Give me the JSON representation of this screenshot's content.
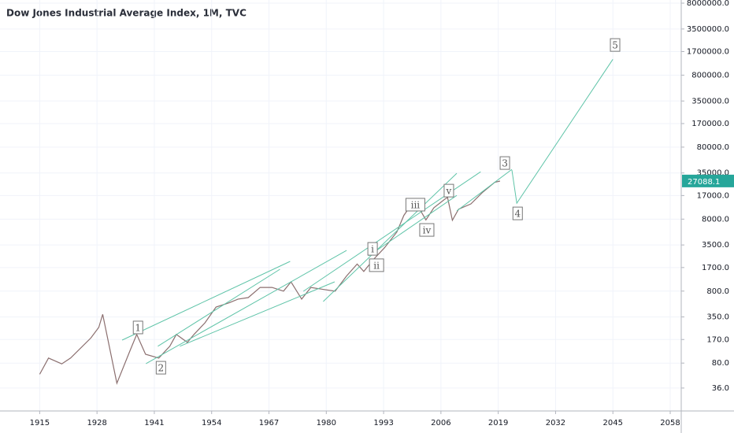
{
  "chart_data": {
    "type": "line",
    "title": "Dow Jones Industrial Average Index, 1M, TVC",
    "log_scale": true,
    "grid": true,
    "xlim": [
      1906,
      2060.5
    ],
    "xticks": [
      1915,
      1928,
      1941,
      1954,
      1967,
      1980,
      1993,
      2006,
      2019,
      2032,
      2045,
      2058
    ],
    "ylim": [
      17.3,
      8850000
    ],
    "yticks": [
      {
        "value": 36,
        "label": "36.0"
      },
      {
        "value": 80,
        "label": "80.0"
      },
      {
        "value": 170,
        "label": "170.0"
      },
      {
        "value": 350,
        "label": "350.0"
      },
      {
        "value": 800,
        "label": "800.0"
      },
      {
        "value": 1700,
        "label": "1700.0"
      },
      {
        "value": 3500,
        "label": "3500.0"
      },
      {
        "value": 8000,
        "label": "8000.0"
      },
      {
        "value": 17000,
        "label": "17000.0"
      },
      {
        "value": 35000,
        "label": "35000.0"
      },
      {
        "value": 80000,
        "label": "80000.0"
      },
      {
        "value": 170000,
        "label": "170000.0"
      },
      {
        "value": 350000,
        "label": "350000.0"
      },
      {
        "value": 800000,
        "label": "800000.0"
      },
      {
        "value": 1700000,
        "label": "1700000.0"
      },
      {
        "value": 3500000,
        "label": "3500000.0"
      },
      {
        "value": 8000000,
        "label": "8000000.0"
      }
    ],
    "series": [
      {
        "color": "#8b6f6f",
        "x": [
          1915,
          1917,
          1920,
          1922,
          1926.6,
          1928.4,
          1929.3,
          1932.5,
          1935.5,
          1937,
          1939,
          1942,
          1944.5,
          1946,
          1948.5,
          1950,
          1952.5,
          1955,
          1958,
          1960,
          1962.3,
          1965,
          1967.7,
          1970.3,
          1972,
          1974.4,
          1976.5,
          1979,
          1982,
          1984.6,
          1987,
          1988.5,
          1990.7,
          1993.2,
          1996,
          1997.6,
          1999.4,
          2001,
          2002.6,
          2004.4,
          2006.8,
          2007.5,
          2008.6,
          2010,
          2012.8,
          2015.5,
          2018.2,
          2019.4
        ],
        "values": [
          56,
          94,
          78,
          94,
          178,
          250,
          380,
          42,
          120,
          200,
          106,
          94,
          137,
          200,
          155,
          200,
          290,
          480,
          550,
          620,
          650,
          900,
          900,
          800,
          1075,
          620,
          900,
          850,
          800,
          1300,
          1900,
          1500,
          2200,
          3200,
          5300,
          9000,
          13000,
          11500,
          7800,
          11500,
          15000,
          16000,
          7700,
          11000,
          13000,
          19000,
          26000,
          27000
        ]
      }
    ],
    "trend_color": "#5fc4a8",
    "trendlines": [
      {
        "x": [
          1933.7,
          1971.8
        ],
        "y": [
          167,
          2070
        ]
      },
      {
        "x": [
          1939.1,
          1984.6
        ],
        "y": [
          78.5,
          2940
        ]
      },
      {
        "x": [
          1941.8,
          1969.5
        ],
        "y": [
          137,
          1610
        ]
      },
      {
        "x": [
          1946.8,
          1981.9
        ],
        "y": [
          137,
          1075
        ]
      },
      {
        "x": [
          1979.3,
          2009.6
        ],
        "y": [
          573,
          34700
        ]
      },
      {
        "x": [
          1974.8,
          2015.0
        ],
        "y": [
          795,
          36400
        ]
      },
      {
        "x": [
          1989.6,
          2009.6
        ],
        "y": [
          2470,
          17100
        ]
      },
      {
        "x": [
          2009.6,
          2022.1
        ],
        "y": [
          10400,
          39300
        ]
      }
    ],
    "projection": {
      "x": [
        2022.1,
        2023.2,
        2045
      ],
      "y": [
        38300,
        13300,
        1330000
      ]
    },
    "waves": [
      {
        "label": "1",
        "x": 1937.3,
        "y": 250
      },
      {
        "label": "2",
        "x": 1942.5,
        "y": 69
      },
      {
        "label": "i",
        "x": 1990.5,
        "y": 3090
      },
      {
        "label": "ii",
        "x": 1991.4,
        "y": 1830
      },
      {
        "label": "iii",
        "x": 2000.2,
        "y": 12700
      },
      {
        "label": "iv",
        "x": 2002.8,
        "y": 5660
      },
      {
        "label": "v",
        "x": 2007.8,
        "y": 19900
      },
      {
        "label": "3",
        "x": 2020.5,
        "y": 48100
      },
      {
        "label": "4",
        "x": 2023.4,
        "y": 9600
      },
      {
        "label": "5",
        "x": 2045.5,
        "y": 2100000
      }
    ],
    "last_price": 27088.1,
    "last_price_color": "#26a69a"
  }
}
